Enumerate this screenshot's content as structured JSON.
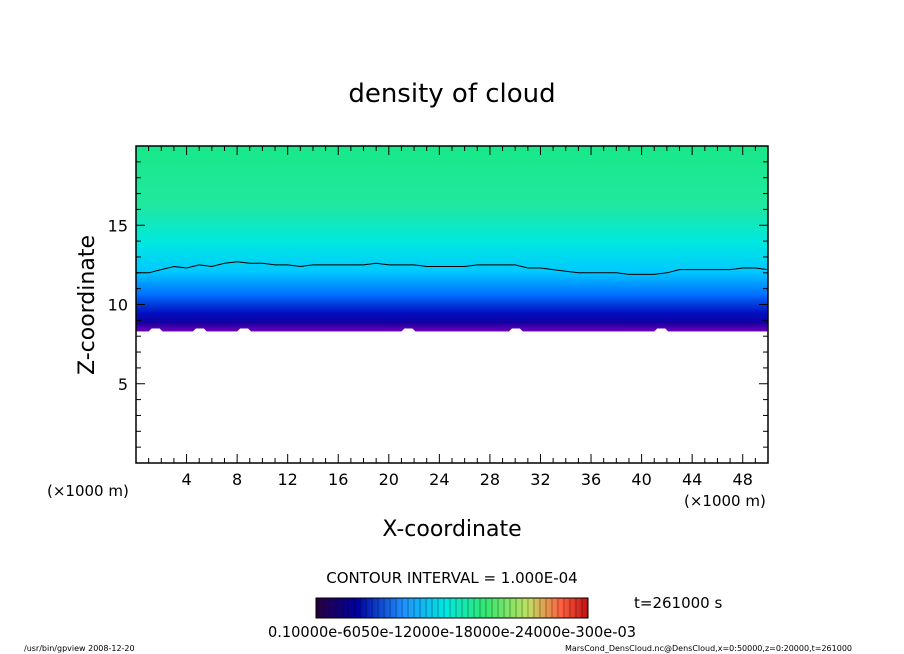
{
  "chart_data": {
    "type": "heatmap",
    "title": "density of cloud",
    "xlabel": "X-coordinate",
    "ylabel": "Z-coordinate",
    "x_unit": "(×1000 m)",
    "x_unit_right": "(×1000 m)",
    "xlim": [
      0,
      50
    ],
    "ylim": [
      0,
      20
    ],
    "x_ticks": [
      4,
      8,
      12,
      16,
      20,
      24,
      28,
      32,
      36,
      40,
      44,
      48
    ],
    "y_ticks": [
      5,
      10,
      15
    ],
    "grid": false,
    "cloud_base_z": 8.3,
    "contour_level_z": [
      [
        0,
        12.0
      ],
      [
        1,
        12.0
      ],
      [
        2,
        12.2
      ],
      [
        3,
        12.4
      ],
      [
        4,
        12.3
      ],
      [
        5,
        12.5
      ],
      [
        6,
        12.4
      ],
      [
        7,
        12.6
      ],
      [
        8,
        12.7
      ],
      [
        9,
        12.6
      ],
      [
        10,
        12.6
      ],
      [
        11,
        12.5
      ],
      [
        12,
        12.5
      ],
      [
        13,
        12.4
      ],
      [
        14,
        12.5
      ],
      [
        15,
        12.5
      ],
      [
        16,
        12.5
      ],
      [
        17,
        12.5
      ],
      [
        18,
        12.5
      ],
      [
        19,
        12.6
      ],
      [
        20,
        12.5
      ],
      [
        21,
        12.5
      ],
      [
        22,
        12.5
      ],
      [
        23,
        12.4
      ],
      [
        24,
        12.4
      ],
      [
        25,
        12.4
      ],
      [
        26,
        12.4
      ],
      [
        27,
        12.5
      ],
      [
        28,
        12.5
      ],
      [
        29,
        12.5
      ],
      [
        30,
        12.5
      ],
      [
        31,
        12.3
      ],
      [
        32,
        12.3
      ],
      [
        33,
        12.2
      ],
      [
        34,
        12.1
      ],
      [
        35,
        12.0
      ],
      [
        36,
        12.0
      ],
      [
        37,
        12.0
      ],
      [
        38,
        12.0
      ],
      [
        39,
        11.9
      ],
      [
        40,
        11.9
      ],
      [
        41,
        11.9
      ],
      [
        42,
        12.0
      ],
      [
        43,
        12.2
      ],
      [
        44,
        12.2
      ],
      [
        45,
        12.2
      ],
      [
        46,
        12.2
      ],
      [
        47,
        12.2
      ],
      [
        48,
        12.3
      ],
      [
        49,
        12.3
      ],
      [
        50,
        12.2
      ]
    ],
    "contour_interval_text": "CONTOUR INTERVAL = 1.000E-04",
    "time_text": "t=261000 s",
    "colorbar_labels_text": "0.10000e-6050e-12000e-18000e-24000e-300e-03",
    "colors": {
      "top": "#18e888",
      "mid": "#00e8ff",
      "deep": "#0010d0",
      "base": "#6a00b8",
      "contour": "#000000"
    }
  },
  "footer": {
    "left": "/usr/bin/gpview  2008-12-20",
    "right": "MarsCond_DensCloud.nc@DensCloud,x=0:50000,z=0:20000,t=261000"
  }
}
